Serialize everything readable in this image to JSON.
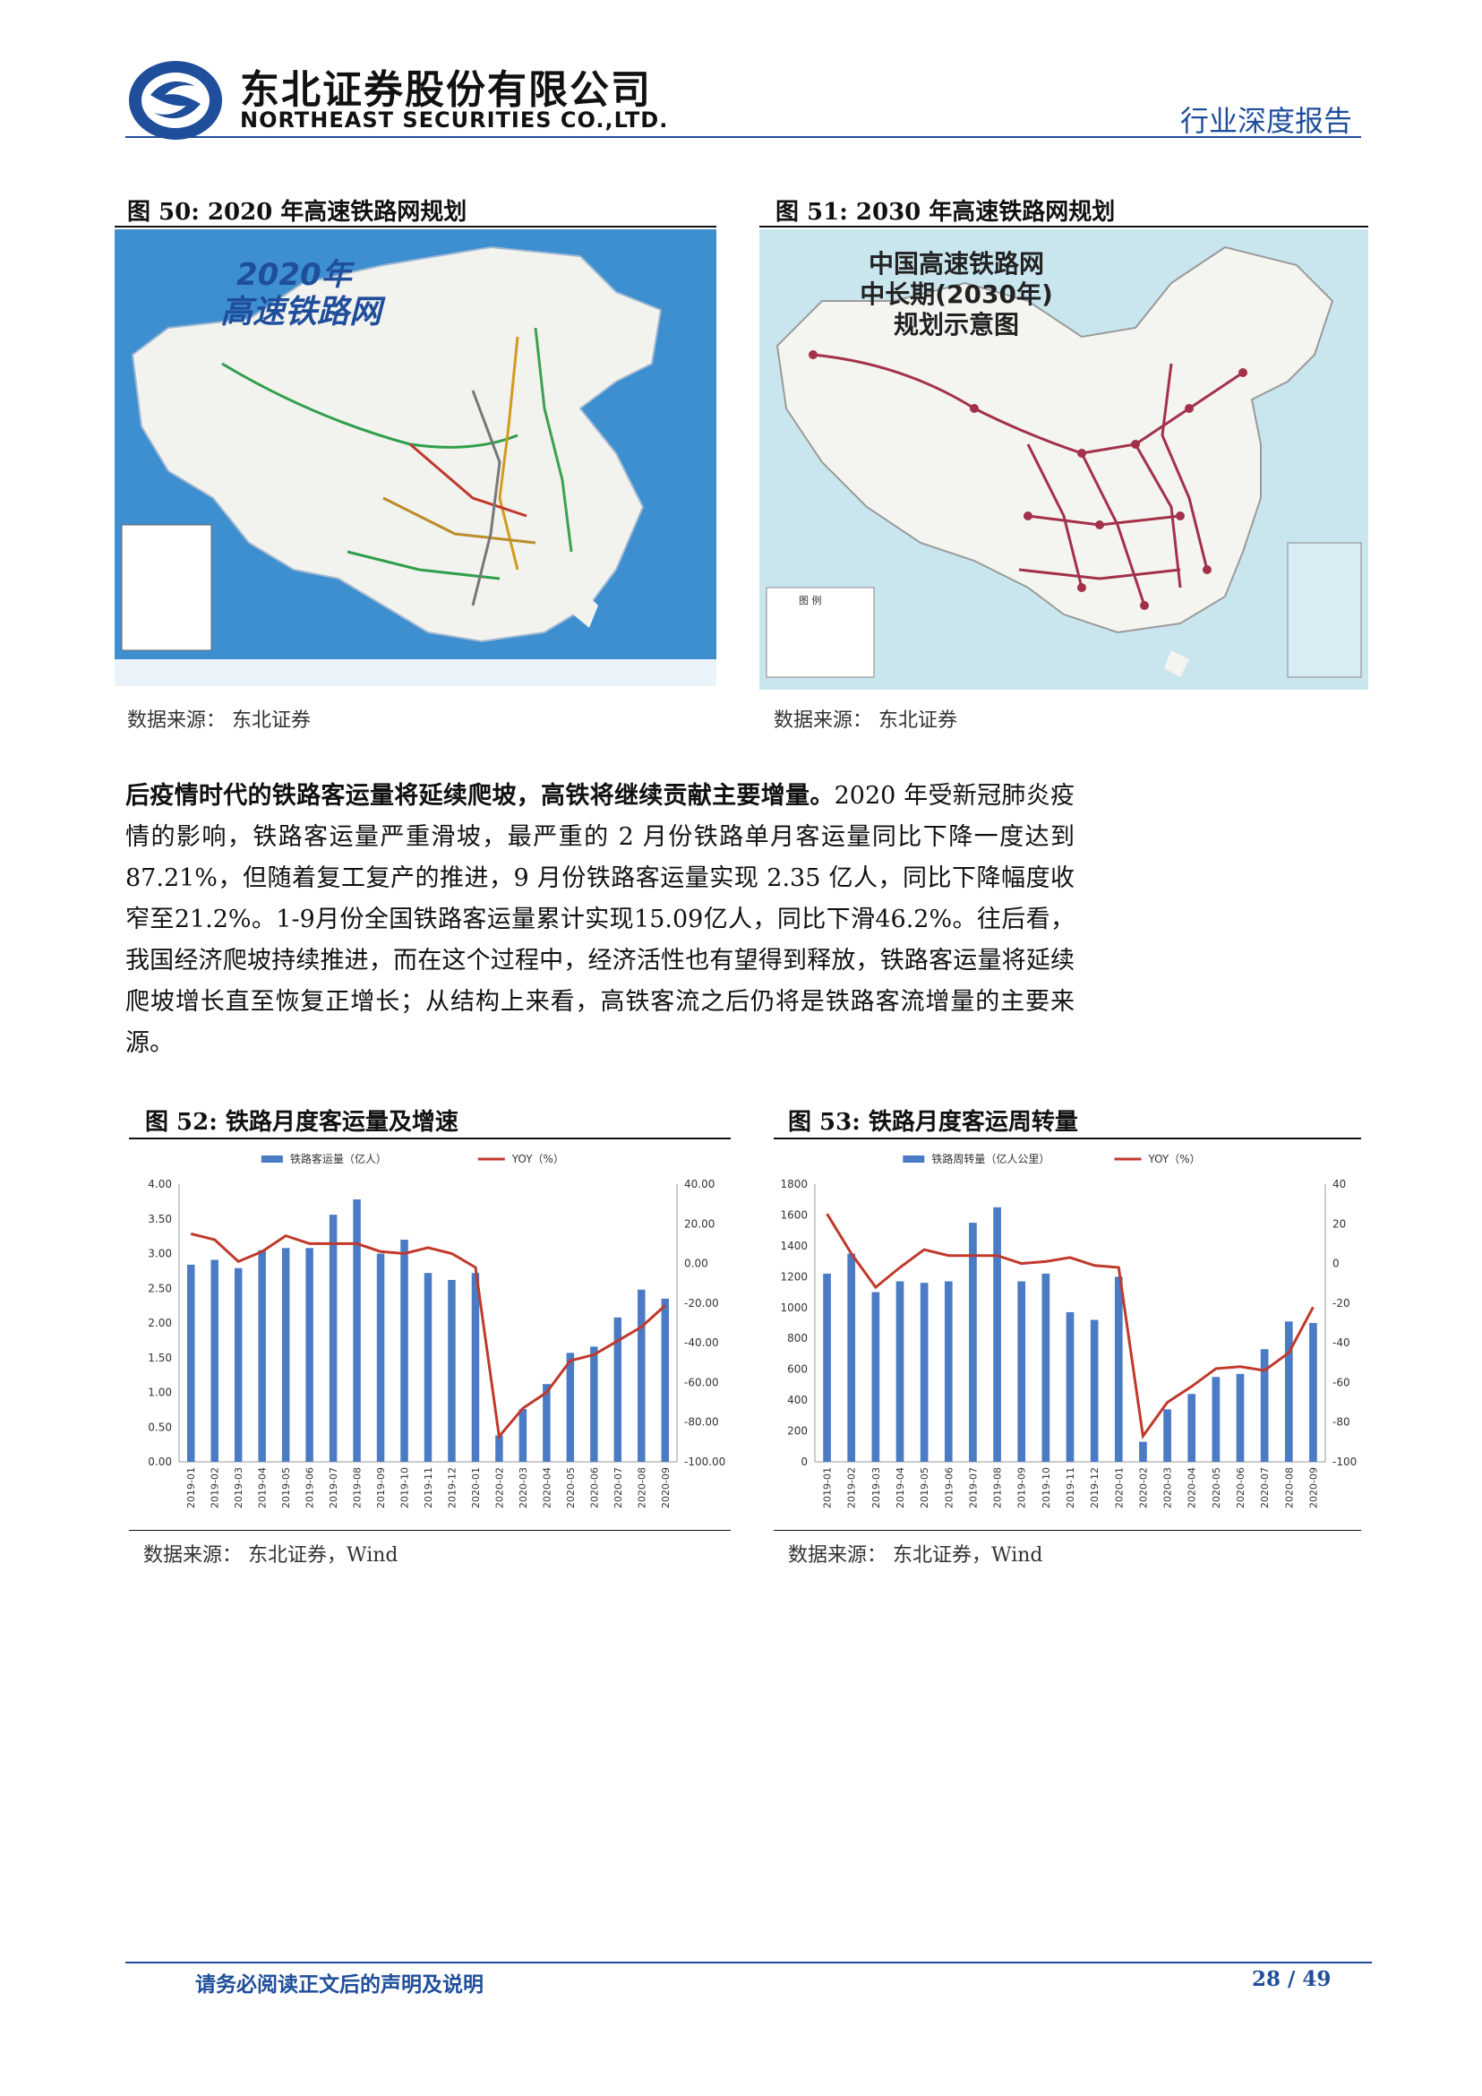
{
  "header": {
    "company_cn": "东北证券股份有限公司",
    "company_en": "NORTHEAST SECURITIES CO.,LTD.",
    "report_type": "行业深度报告",
    "brand_color": "#1f4e9b"
  },
  "figures": {
    "fig50": {
      "title": "图 50: 2020 年高速铁路网规划",
      "map_title_line1": "2020年",
      "map_title_line2": "高速铁路网",
      "source": "数据来源： 东北证券"
    },
    "fig51": {
      "title": "图 51: 2030 年高速铁路网规划",
      "map_title_line1": "中国高速铁路网",
      "map_title_line2": "中长期(2030年)",
      "map_title_line3": "规划示意图",
      "legend_title": "图 例",
      "source": "数据来源： 东北证券"
    },
    "fig52": {
      "title": "图 52: 铁路月度客运量及增速",
      "source": "数据来源： 东北证券，Wind"
    },
    "fig53": {
      "title": "图 53: 铁路月度客运周转量",
      "source": "数据来源： 东北证券，Wind"
    }
  },
  "paragraph": {
    "bold_lead": "后疫情时代的铁路客运量将延续爬坡，高铁将继续贡献主要增量。",
    "body": "2020 年受新冠肺炎疫情的影响，铁路客运量严重滑坡，最严重的 2 月份铁路单月客运量同比下降一度达到 87.21%，但随着复工复产的推进，9 月份铁路客运量实现 2.35 亿人，同比下降幅度收窄至21.2%。1-9月份全国铁路客运量累计实现15.09亿人，同比下滑46.2%。往后看，我国经济爬坡持续推进，而在这个过程中，经济活性也有望得到释放，铁路客运量将延续爬坡增长直至恢复正增长；从结构上来看，高铁客流之后仍将是铁路客流增量的主要来源。"
  },
  "footer": {
    "disclaimer": "请务必阅读正文后的声明及说明",
    "page": "28 / 49"
  },
  "chart_data": [
    {
      "id": "fig52",
      "type": "bar",
      "categories": [
        "2019-01",
        "2019-02",
        "2019-03",
        "2019-04",
        "2019-05",
        "2019-06",
        "2019-07",
        "2019-08",
        "2019-09",
        "2019-10",
        "2019-11",
        "2019-12",
        "2020-01",
        "2020-02",
        "2020-03",
        "2020-04",
        "2020-05",
        "2020-06",
        "2020-07",
        "2020-08",
        "2020-09"
      ],
      "series": [
        {
          "name": "铁路客运量（亿人）",
          "type": "bar",
          "axis": "left",
          "color": "#4a7bc4",
          "values": [
            2.84,
            2.91,
            2.79,
            3.05,
            3.08,
            3.08,
            3.56,
            3.78,
            3.0,
            3.2,
            2.72,
            2.62,
            2.72,
            0.38,
            0.76,
            1.12,
            1.57,
            1.66,
            2.08,
            2.48,
            2.35
          ]
        },
        {
          "name": "YOY（%）",
          "type": "line",
          "axis": "right",
          "color": "#c0392b",
          "values": [
            15,
            12,
            1,
            6,
            14,
            10,
            10,
            10,
            6,
            5,
            8,
            5,
            -2,
            -87.21,
            -73,
            -65,
            -49,
            -46,
            -39,
            -32,
            -21.2
          ]
        }
      ],
      "left_axis": {
        "min": 0,
        "max": 4,
        "ticks": [
          "0.00",
          "0.50",
          "1.00",
          "1.50",
          "2.00",
          "2.50",
          "3.00",
          "3.50",
          "4.00"
        ]
      },
      "right_axis": {
        "min": -100,
        "max": 40,
        "ticks": [
          "-100.00",
          "-80.00",
          "-60.00",
          "-40.00",
          "-20.00",
          "0.00",
          "20.00",
          "40.00"
        ]
      },
      "legend": "top"
    },
    {
      "id": "fig53",
      "type": "bar",
      "categories": [
        "2019-01",
        "2019-02",
        "2019-03",
        "2019-04",
        "2019-05",
        "2019-06",
        "2019-07",
        "2019-08",
        "2019-09",
        "2019-10",
        "2019-11",
        "2019-12",
        "2020-01",
        "2020-02",
        "2020-03",
        "2020-04",
        "2020-05",
        "2020-06",
        "2020-07",
        "2020-08",
        "2020-09"
      ],
      "series": [
        {
          "name": "铁路周转量（亿人公里）",
          "type": "bar",
          "axis": "left",
          "color": "#4a7bc4",
          "values": [
            1220,
            1350,
            1100,
            1170,
            1160,
            1170,
            1550,
            1650,
            1170,
            1220,
            970,
            920,
            1200,
            130,
            340,
            440,
            550,
            570,
            730,
            910,
            900
          ]
        },
        {
          "name": "YOY（%）",
          "type": "line",
          "axis": "right",
          "color": "#c0392b",
          "values": [
            25,
            5,
            -12,
            -2,
            7,
            4,
            4,
            4,
            0,
            1,
            3,
            -1,
            -2,
            -87,
            -70,
            -62,
            -53,
            -52,
            -54,
            -45,
            -22
          ]
        }
      ],
      "left_axis": {
        "min": 0,
        "max": 1800,
        "ticks": [
          "0",
          "200",
          "400",
          "600",
          "800",
          "1000",
          "1200",
          "1400",
          "1600",
          "1800"
        ]
      },
      "right_axis": {
        "min": -100,
        "max": 40,
        "ticks": [
          "-100",
          "-80",
          "-60",
          "-40",
          "-20",
          "0",
          "20",
          "40"
        ]
      },
      "legend": "top"
    }
  ]
}
